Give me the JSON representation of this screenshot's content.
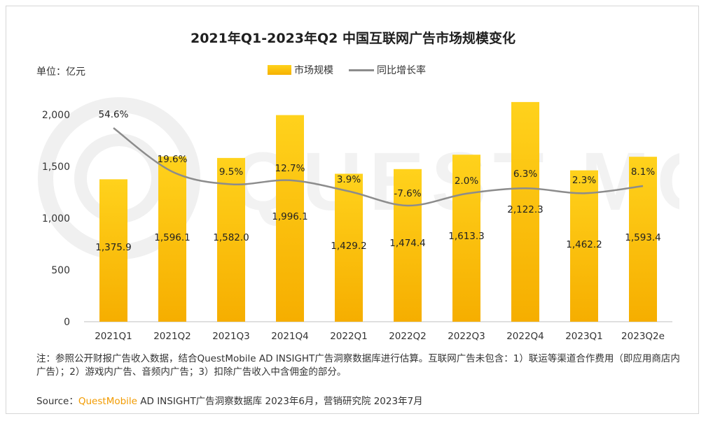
{
  "chart_data": {
    "type": "bar",
    "title": "2021年Q1-2023年Q2 中国互联网广告市场规模变化",
    "unit_label": "单位：亿元",
    "categories": [
      "2021Q1",
      "2021Q2",
      "2021Q3",
      "2021Q4",
      "2022Q1",
      "2022Q2",
      "2022Q3",
      "2022Q4",
      "2023Q1",
      "2023Q2e"
    ],
    "series": [
      {
        "name": "市场规模",
        "kind": "bar",
        "color": "#f9c10a",
        "values": [
          1375.9,
          1596.1,
          1582.0,
          1996.1,
          1429.2,
          1474.4,
          1613.3,
          2122.3,
          1462.2,
          1593.4
        ],
        "labels": [
          "1,375.9",
          "1,596.1",
          "1,582.0",
          "1,996.1",
          "1,429.2",
          "1,474.4",
          "1,613.3",
          "2,122.3",
          "1,462.2",
          "1,593.4"
        ]
      },
      {
        "name": "同比增长率",
        "kind": "line",
        "color": "#8c8c8c",
        "values": [
          54.6,
          19.6,
          9.5,
          12.7,
          3.9,
          -7.6,
          2.0,
          6.3,
          2.3,
          8.1
        ],
        "labels": [
          "54.6%",
          "19.6%",
          "9.5%",
          "12.7%",
          "3.9%",
          "-7.6%",
          "2.0%",
          "6.3%",
          "2.3%",
          "8.1%"
        ]
      }
    ],
    "y_axis": {
      "min": 0,
      "max": 2000,
      "ticks": [
        0,
        500,
        1000,
        1500,
        2000
      ],
      "tick_labels": [
        "0",
        "500",
        "1,000",
        "1,500",
        "2,000"
      ]
    },
    "legend": "top-center",
    "grid": false
  },
  "note": "注：参照公开财报广告收入数据，结合QuestMobile AD INSIGHT广告洞察数据库进行估算。互联网广告未包含：1）联运等渠道合作费用（即应用商店内广告）；2）游戏内广告、音频内广告；3）扣除广告收入中含佣金的部分。",
  "source": {
    "prefix": "Source：",
    "brand": "QuestMobile",
    "rest": " AD INSIGHT广告洞察数据库 2023年6月，营销研究院 2023年7月"
  }
}
